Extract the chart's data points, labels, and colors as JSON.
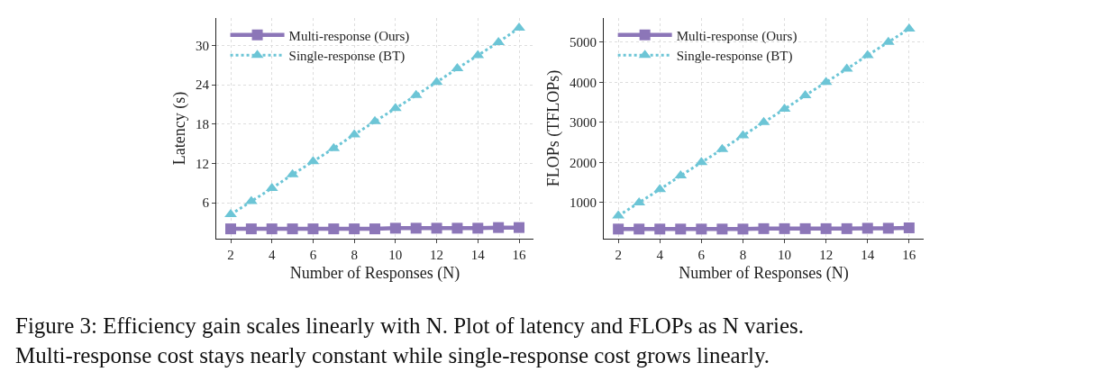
{
  "chart_data": [
    {
      "type": "line",
      "xlabel": "Number of Responses (N)",
      "ylabel": "Latency (s)",
      "x": [
        2,
        3,
        4,
        5,
        6,
        7,
        8,
        9,
        10,
        11,
        12,
        13,
        14,
        15,
        16
      ],
      "series": [
        {
          "name": "Multi-response (Ours)",
          "color": "#8c76b8",
          "marker": "square",
          "line_style": "solid",
          "values": [
            2.0,
            2.0,
            2.0,
            2.0,
            2.0,
            2.0,
            2.0,
            2.0,
            2.1,
            2.1,
            2.1,
            2.1,
            2.1,
            2.2,
            2.2
          ]
        },
        {
          "name": "Single-response (BT)",
          "color": "#6cc5d6",
          "marker": "triangle",
          "line_style": "dotted",
          "values": [
            4.2,
            6.2,
            8.2,
            10.3,
            12.3,
            14.3,
            16.4,
            18.4,
            20.4,
            22.4,
            24.4,
            26.5,
            28.5,
            30.5,
            32.7
          ]
        }
      ],
      "xlim": [
        1.3,
        16.7
      ],
      "xticks": [
        2,
        4,
        6,
        8,
        10,
        12,
        14,
        16
      ],
      "ylim": [
        0.5,
        34.2
      ],
      "yticks": [
        6,
        12,
        18,
        24,
        30
      ],
      "grid": true,
      "legend": "top left",
      "annotations": [
        "Figure 3: Efficiency gain scales linearly with N. Plot of latency and FLOPs as N varies.\nMulti-response cost stays nearly constant while single-response cost grows linearly."
      ]
    },
    {
      "type": "line",
      "xlabel": "Number of Responses (N)",
      "ylabel": "FLOPs (TFLOPs)",
      "x": [
        2,
        3,
        4,
        5,
        6,
        7,
        8,
        9,
        10,
        11,
        12,
        13,
        14,
        15,
        16
      ],
      "series": [
        {
          "name": "Multi-response (Ours)",
          "color": "#8c76b8",
          "marker": "square",
          "line_style": "solid",
          "values": [
            340,
            340,
            340,
            340,
            340,
            340,
            340,
            350,
            350,
            350,
            350,
            350,
            360,
            360,
            370
          ]
        },
        {
          "name": "Single-response (BT)",
          "color": "#6cc5d6",
          "marker": "triangle",
          "line_style": "dotted",
          "values": [
            670,
            1000,
            1330,
            1670,
            2000,
            2330,
            2670,
            3000,
            3330,
            3670,
            4000,
            4330,
            4670,
            5000,
            5330
          ]
        }
      ],
      "xlim": [
        1.3,
        16.7
      ],
      "xticks": [
        2,
        4,
        6,
        8,
        10,
        12,
        14,
        16
      ],
      "ylim": [
        100,
        5600
      ],
      "yticks": [
        1000,
        2000,
        3000,
        4000,
        5000
      ],
      "grid": true,
      "legend": "top left"
    }
  ]
}
